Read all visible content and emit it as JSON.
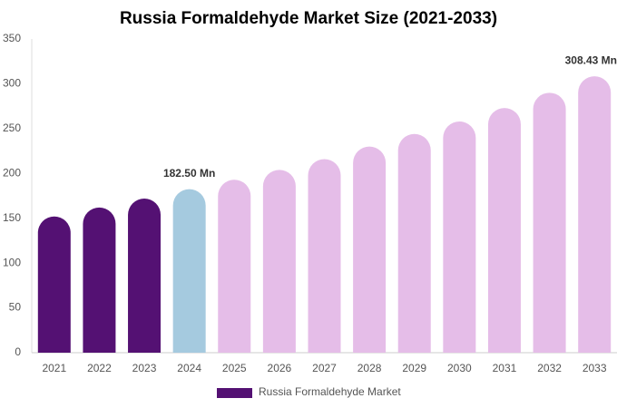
{
  "chart_data": {
    "type": "bar",
    "title": "Russia Formaldehyde Market Size (2021-2033)",
    "categories": [
      "2021",
      "2022",
      "2023",
      "2024",
      "2025",
      "2026",
      "2027",
      "2028",
      "2029",
      "2030",
      "2031",
      "2032",
      "2033"
    ],
    "series": [
      {
        "name": "Russia Formaldehyde Market",
        "color": "#541173",
        "values": [
          152,
          162,
          172,
          182.5,
          193,
          204,
          216,
          230,
          244,
          258,
          273,
          290,
          308.43
        ],
        "value_labels": [
          null,
          null,
          null,
          "182.50 Mn",
          null,
          null,
          null,
          null,
          null,
          null,
          null,
          null,
          "308.43 Mn"
        ],
        "colors": [
          "#541173",
          "#541173",
          "#541173",
          "#a5cadf",
          "#e5bde8",
          "#e5bde8",
          "#e5bde8",
          "#e5bde8",
          "#e5bde8",
          "#e5bde8",
          "#e5bde8",
          "#e5bde8",
          "#e5bde8"
        ]
      }
    ],
    "ylim": [
      0,
      350
    ],
    "yticks": [
      0,
      50,
      100,
      150,
      200,
      250,
      300,
      350
    ],
    "grid": false
  }
}
